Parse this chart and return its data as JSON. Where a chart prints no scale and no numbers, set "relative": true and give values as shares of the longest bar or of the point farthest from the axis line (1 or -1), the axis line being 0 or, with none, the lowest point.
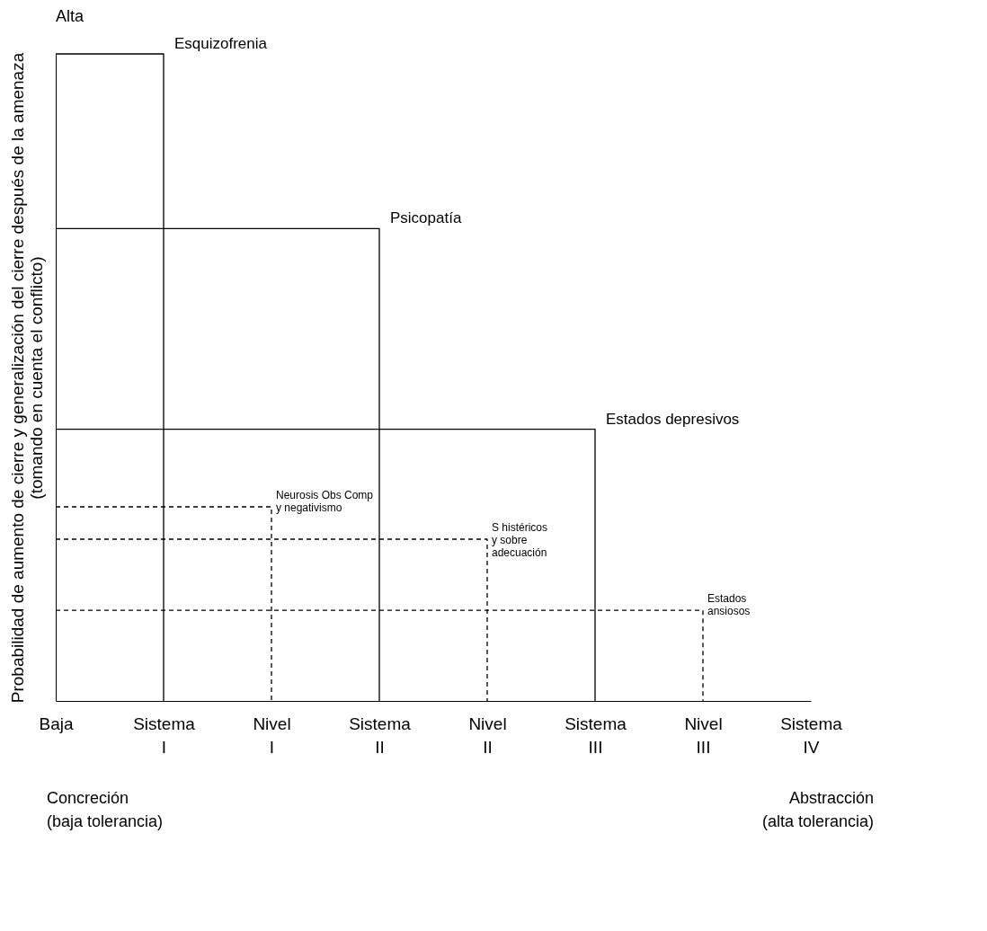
{
  "chart_data": {
    "type": "step",
    "relative": true,
    "ylabel": "Probabilidad de aumento de cierre y generalización del cierre después de la amenaza\n(tomando en cuenta el conflicto)",
    "categories": [
      "Baja",
      "Sistema I",
      "Nivel I",
      "Sistema II",
      "Nivel II",
      "Sistema III",
      "Nivel III",
      "Sistema IV"
    ],
    "series": [
      {
        "name": "Esquizofrenia",
        "color": "#000000",
        "line_style": "solid",
        "values": [
          1,
          0,
          null,
          null,
          null,
          null,
          null,
          null
        ]
      },
      {
        "name": "Psicopatía",
        "color": "#000000",
        "line_style": "solid",
        "values": [
          0.73,
          0.73,
          0.73,
          0,
          null,
          null,
          null,
          null
        ]
      },
      {
        "name": "Estados depresivos",
        "color": "#000000",
        "line_style": "solid",
        "values": [
          0.42,
          0.42,
          0.42,
          0.42,
          0.42,
          0,
          null,
          null
        ]
      },
      {
        "name": "Neurosis Obs Comp\ny negativismo",
        "color": "#000000",
        "line_style": "dashed",
        "values": [
          0.3,
          0.3,
          0,
          null,
          null,
          null,
          null,
          null
        ]
      },
      {
        "name": "S histéricos\ny sobre\nadecuación",
        "color": "#000000",
        "line_style": "dashed",
        "values": [
          0.25,
          0.25,
          0.25,
          0.25,
          0,
          null,
          null,
          null
        ]
      },
      {
        "name": "Estados\nansiosos",
        "color": "#000000",
        "line_style": "dashed",
        "values": [
          0.14,
          0.14,
          0.14,
          0.14,
          0.14,
          0.14,
          0,
          null
        ]
      }
    ],
    "annotations": [
      "Alta",
      "Concreción\n(baja tolerancia)",
      "Abstracción\n(alta tolerancia)"
    ]
  }
}
